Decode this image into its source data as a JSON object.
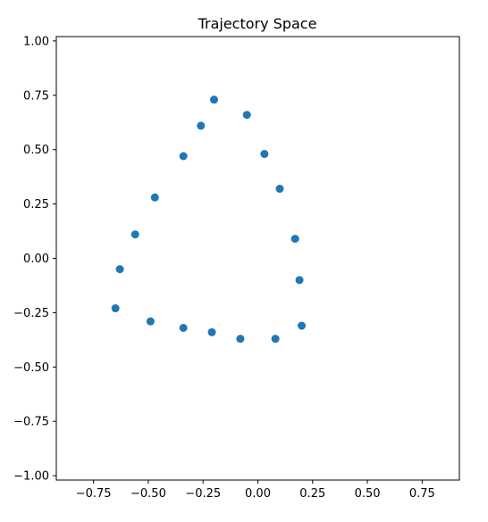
{
  "chart_data": {
    "type": "scatter",
    "title": "Trajectory Space",
    "xlabel": "",
    "ylabel": "",
    "xlim": [
      -0.92,
      0.92
    ],
    "ylim": [
      -1.02,
      1.02
    ],
    "grid": false,
    "legend": "none",
    "marker_color": "#1f77b4",
    "x_ticks": [
      -0.75,
      -0.5,
      -0.25,
      0.0,
      0.25,
      0.5,
      0.75
    ],
    "x_tick_labels": [
      "−0.75",
      "−0.50",
      "−0.25",
      "0.00",
      "0.25",
      "0.50",
      "0.75"
    ],
    "y_ticks": [
      1.0,
      0.75,
      0.5,
      0.25,
      0.0,
      -0.25,
      -0.5,
      -0.75,
      -1.0
    ],
    "y_tick_labels": [
      "1.00",
      "0.75",
      "0.50",
      "0.25",
      "0.00",
      "−0.25",
      "−0.50",
      "−0.75",
      "−1.00"
    ],
    "series": [
      {
        "x": [
          -0.2,
          -0.05,
          0.03,
          0.1,
          0.17,
          0.19,
          0.2,
          0.08,
          -0.08,
          -0.21,
          -0.34,
          -0.49,
          -0.65,
          -0.63,
          -0.56,
          -0.47,
          -0.34,
          -0.26
        ],
        "y": [
          0.73,
          0.66,
          0.48,
          0.32,
          0.09,
          -0.1,
          -0.31,
          -0.37,
          -0.37,
          -0.34,
          -0.32,
          -0.29,
          -0.23,
          -0.05,
          0.11,
          0.28,
          0.47,
          0.61
        ]
      }
    ]
  }
}
